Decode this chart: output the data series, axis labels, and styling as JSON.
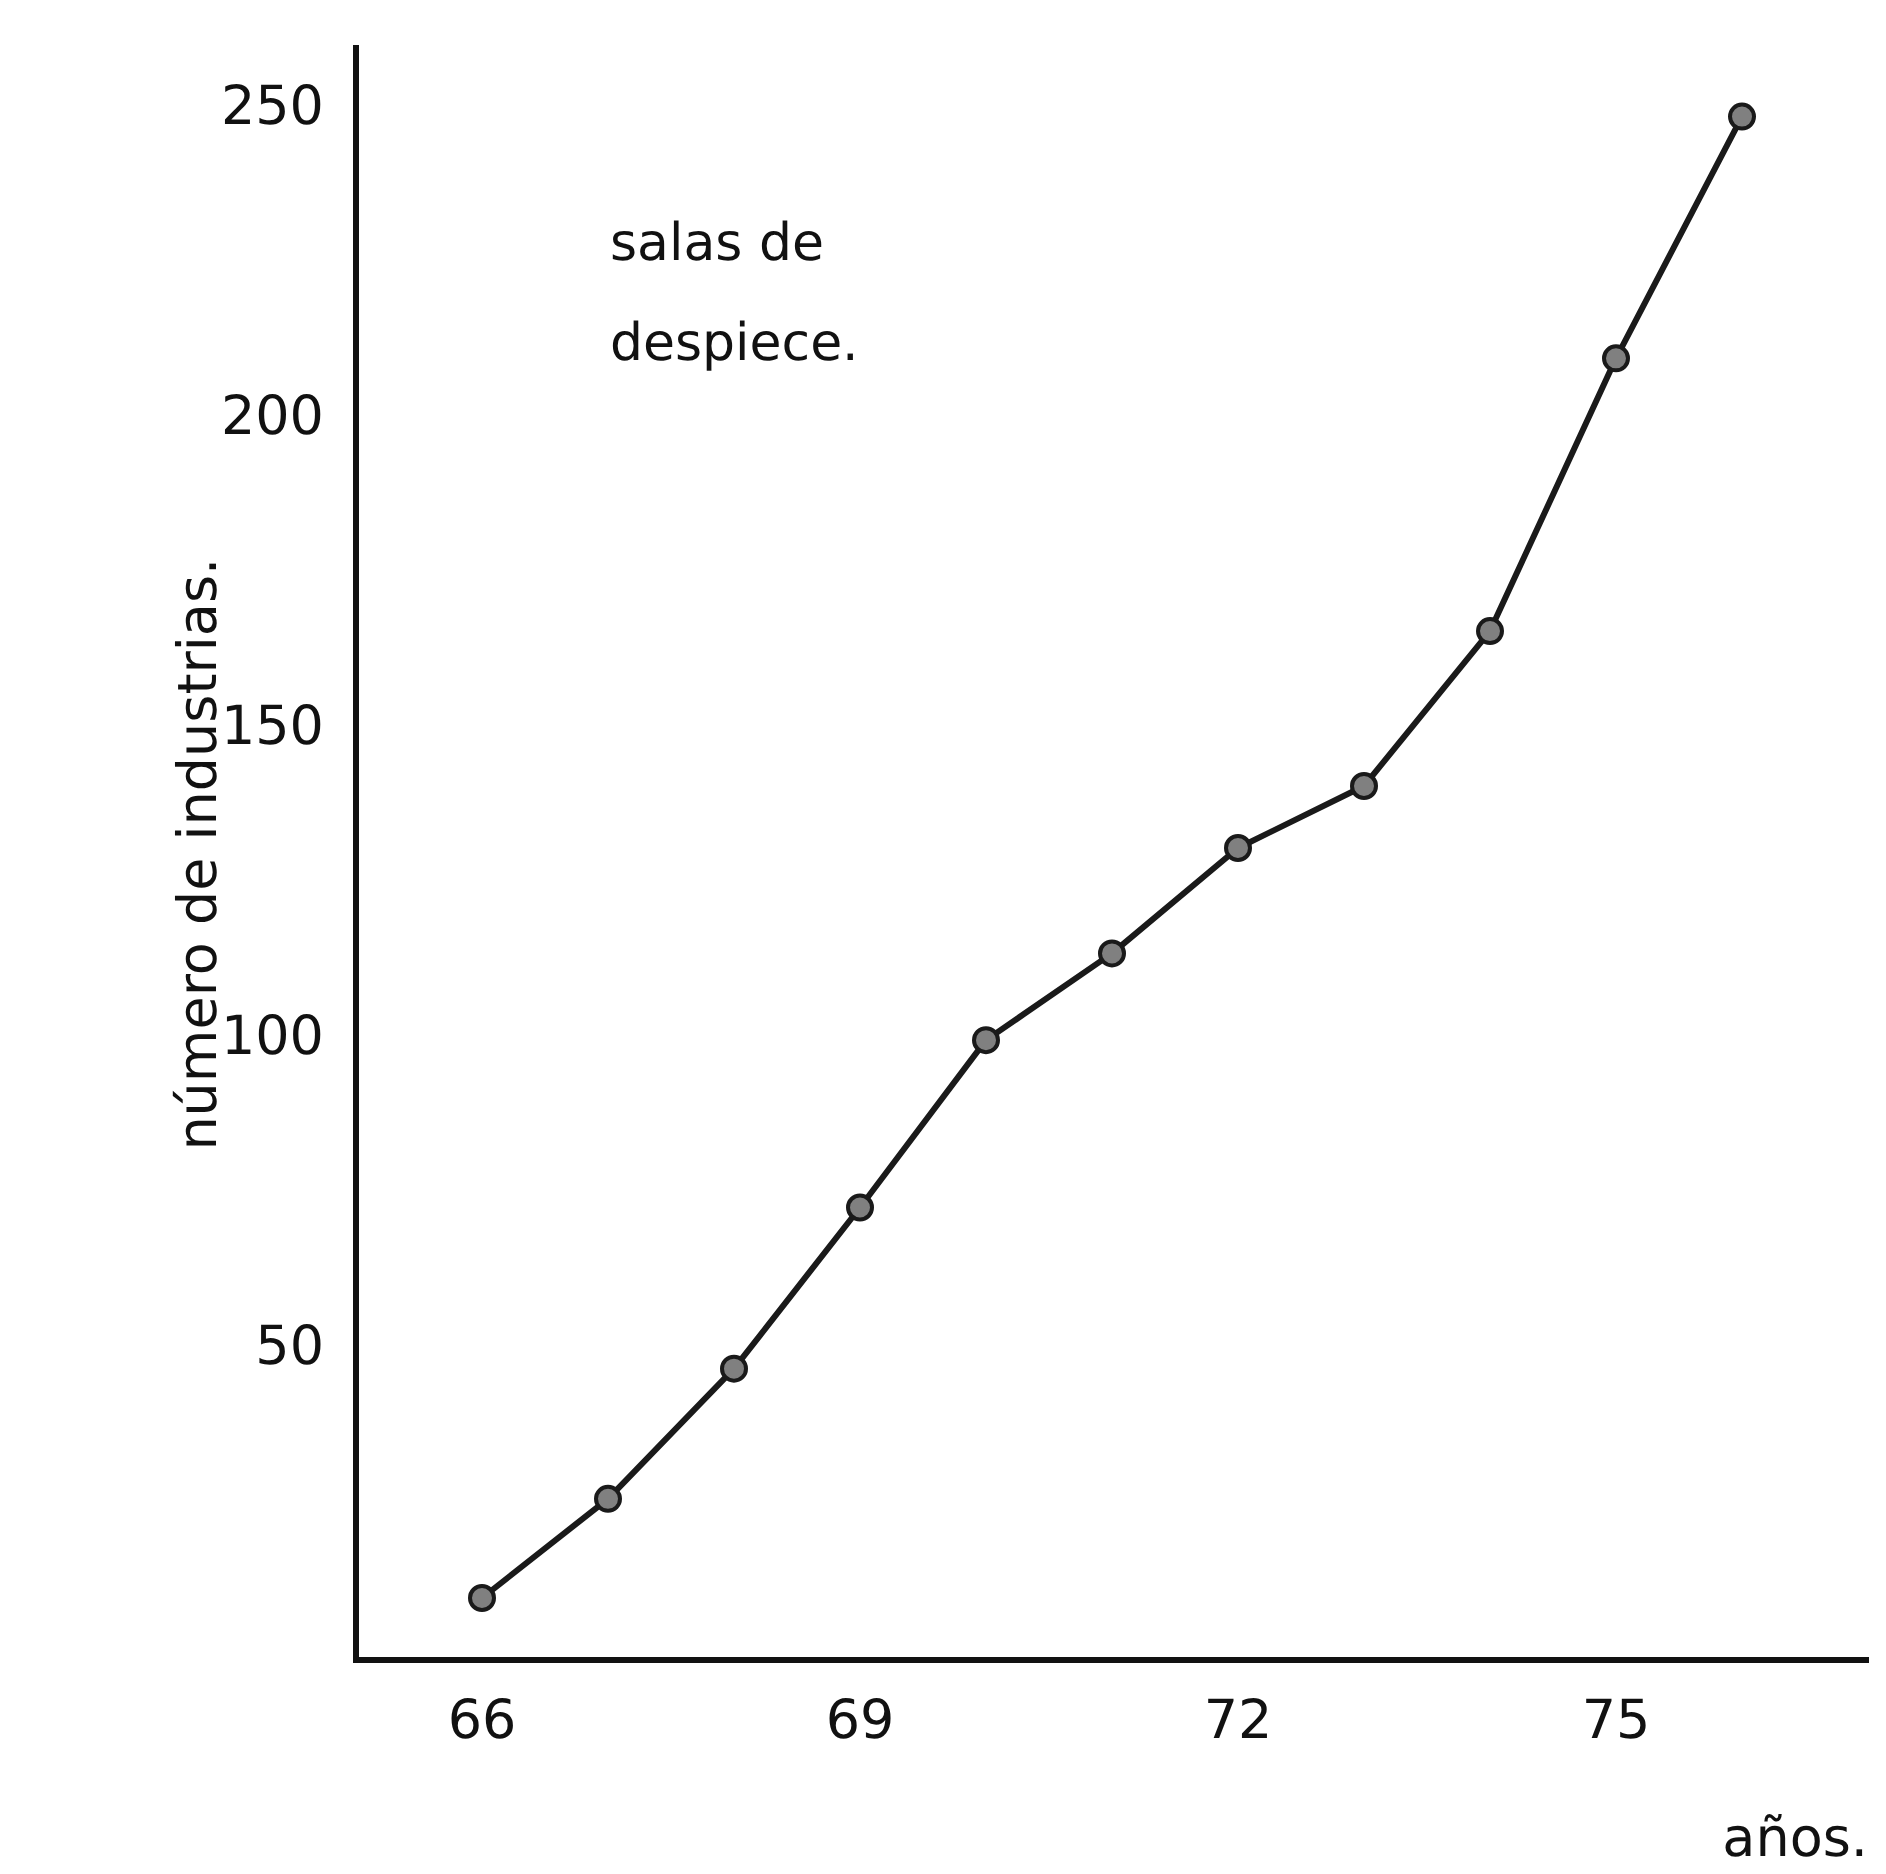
{
  "chart_data": {
    "type": "line",
    "xlabel": "años.",
    "ylabel": "número de industrias.",
    "annotations": [
      "salas de despiece."
    ],
    "x": [
      66,
      67,
      68,
      69,
      70,
      71,
      72,
      73,
      74,
      75,
      76
    ],
    "series": [
      {
        "color": "#1a1a1a",
        "values": [
          10,
          26,
          47,
          73,
          100,
          114,
          131,
          141,
          166,
          210,
          249
        ]
      }
    ],
    "xlim": [
      65,
      77
    ],
    "xticks": [
      66,
      69,
      72,
      75
    ],
    "ylim": [
      0,
      260
    ],
    "yticks": [
      50,
      100,
      150,
      200,
      250
    ],
    "grid": false,
    "legend": false,
    "marker": "circle",
    "line_style": "solid"
  }
}
